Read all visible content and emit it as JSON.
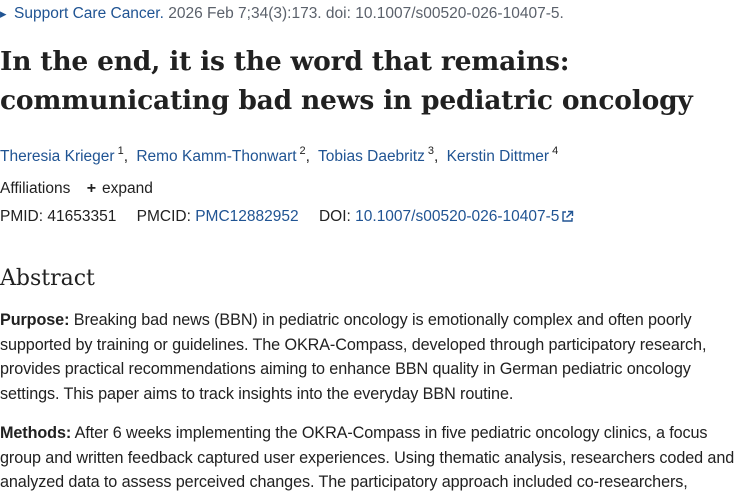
{
  "citation": {
    "journal": "Support Care Cancer.",
    "details": " 2026 Feb 7;34(3):173. doi: 10.1007/s00520-026-10407-5."
  },
  "article": {
    "title": "In the end, it is the word that remains: communicating bad news in pediatric oncology"
  },
  "authors": [
    {
      "name": "Theresia Krieger",
      "sup": "1"
    },
    {
      "name": "Remo Kamm-Thonwart",
      "sup": "2"
    },
    {
      "name": "Tobias Daebritz",
      "sup": "3"
    },
    {
      "name": "Kerstin Dittmer",
      "sup": "4"
    }
  ],
  "separator": ",",
  "affiliations": {
    "label": "Affiliations",
    "expand_label": "expand"
  },
  "identifiers": {
    "pmid_label": "PMID:",
    "pmid": "41653351",
    "pmcid_label": "PMCID:",
    "pmcid": "PMC12882952",
    "doi_label": "DOI:",
    "doi": "10.1007/s00520-026-10407-5"
  },
  "abstract": {
    "heading": "Abstract",
    "purpose_label": "Purpose:",
    "purpose_text": " Breaking bad news (BBN) in pediatric oncology is emotionally complex and often poorly supported by training or guidelines. The OKRA-Compass, developed through participatory research, provides practical recommendations aiming to enhance BBN quality in German pediatric oncology settings. This paper aims to track insights into the everyday BBN routine.",
    "methods_label": "Methods:",
    "methods_text": " After 6 weeks implementing the OKRA-Compass in five pediatric oncology clinics, a focus group and written feedback captured user experiences. Using thematic analysis, researchers coded and analyzed data to assess perceived changes. The participatory approach included co-researchers,"
  },
  "icons": {
    "citation_arrow": "triangle-right-icon",
    "expand": "plus-icon",
    "external_link": "external-link-icon"
  },
  "colors": {
    "link": "#205493",
    "text": "#212121",
    "muted": "#5b616b"
  }
}
